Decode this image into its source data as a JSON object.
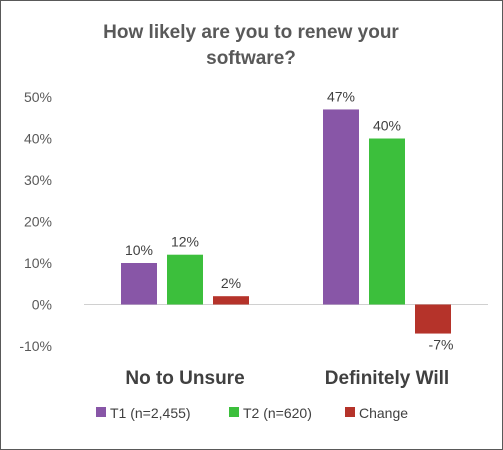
{
  "chart_data": {
    "type": "bar",
    "title_lines": [
      "How likely are you to renew your",
      "software?"
    ],
    "categories": [
      "No to Unsure",
      "Definitely Will"
    ],
    "series": [
      {
        "name": "T1 (n=2,455)",
        "values": [
          10,
          47
        ],
        "labels": [
          "10%",
          "47%"
        ],
        "color": "#8856a7"
      },
      {
        "name": "T2 (n=620)",
        "values": [
          12,
          40
        ],
        "labels": [
          "12%",
          "40%"
        ],
        "color": "#3cbf3c"
      },
      {
        "name": "Change",
        "values": [
          2,
          -7
        ],
        "labels": [
          "2%",
          "-7%"
        ],
        "color": "#b5332a"
      }
    ],
    "ylim": [
      -10,
      50
    ],
    "yticks": [
      50,
      40,
      30,
      20,
      10,
      0,
      -10
    ],
    "ytick_labels": [
      "50%",
      "40%",
      "30%",
      "20%",
      "10%",
      "0%",
      "-10%"
    ],
    "grid": false,
    "legend_position": "bottom"
  }
}
